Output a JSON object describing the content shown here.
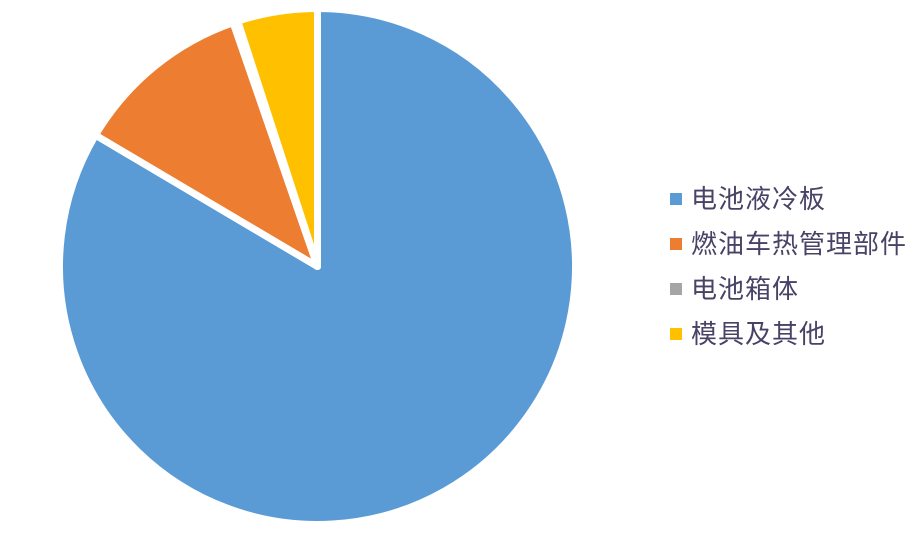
{
  "chart_data": {
    "type": "pie",
    "title": "",
    "legend_position": "right",
    "unit": "%",
    "labels": [
      "电池液冷板",
      "燃油车热管理部件",
      "电池箱体",
      "模具及其他"
    ],
    "values": [
      83.5,
      11.2,
      0.3,
      5.0
    ],
    "colors": [
      "#5B9BD5",
      "#ED7D31",
      "#A5A5A5",
      "#FFC000"
    ],
    "slice_keys": [
      "battery-liquid-cold-plate",
      "fuel-vehicle-thermal-mgmt-parts",
      "battery-box",
      "molds-and-others"
    ],
    "start_angle_deg": 0,
    "direction": "clockwise",
    "separator_color": "#ffffff",
    "text_color": "#474266",
    "background": "#ffffff"
  }
}
